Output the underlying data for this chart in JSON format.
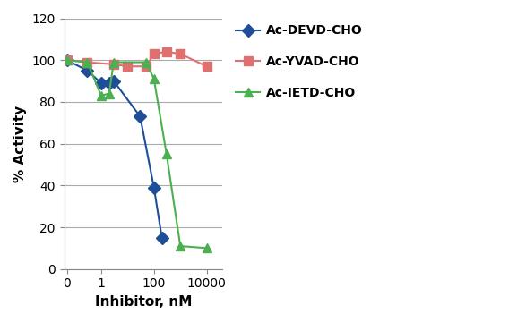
{
  "title": "",
  "xlabel": "Inhibitor, nM",
  "ylabel": "% Activity",
  "ylim": [
    0,
    120
  ],
  "yticks": [
    0,
    20,
    40,
    60,
    80,
    100,
    120
  ],
  "series": [
    {
      "label": "Ac-DEVD-CHO",
      "x": [
        0.05,
        0.3,
        1.0,
        2.0,
        3.0,
        30.0,
        100.0,
        200.0
      ],
      "y": [
        100,
        95,
        89,
        89,
        90,
        73,
        39,
        15
      ],
      "color": "#1f4e99",
      "marker": "D",
      "markersize": 7,
      "linewidth": 1.5
    },
    {
      "label": "Ac-YVAD-CHO",
      "x": [
        0.05,
        0.3,
        3.0,
        10.0,
        50.0,
        100.0,
        300.0,
        1000.0,
        10000.0
      ],
      "y": [
        100,
        99,
        98,
        97,
        97,
        103,
        104,
        103,
        97
      ],
      "color": "#e07070",
      "marker": "s",
      "markersize": 7,
      "linewidth": 1.5
    },
    {
      "label": "Ac-IETD-CHO",
      "x": [
        0.05,
        0.3,
        1.0,
        2.0,
        3.0,
        50.0,
        100.0,
        300.0,
        1000.0,
        10000.0
      ],
      "y": [
        100,
        99,
        83,
        84,
        99,
        99,
        91,
        55,
        11,
        10
      ],
      "color": "#4caf50",
      "marker": "^",
      "markersize": 7,
      "linewidth": 1.5
    }
  ],
  "grid_color": "#aaaaaa",
  "background_color": "#ffffff",
  "xlim": [
    0.04,
    40000
  ],
  "xtick_positions": [
    0.05,
    1,
    100,
    10000
  ],
  "xtick_labels": [
    "0",
    "1",
    "100",
    "10000"
  ]
}
